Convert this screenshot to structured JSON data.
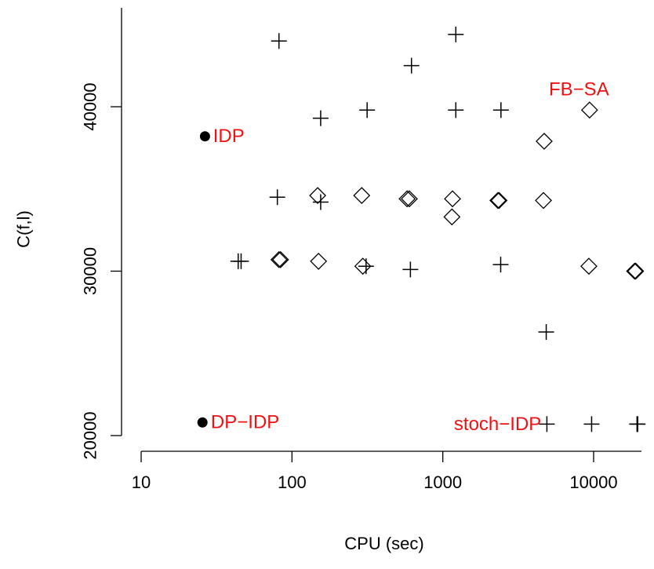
{
  "chart_data": {
    "type": "scatter",
    "title": "",
    "xlabel": "CPU (sec)",
    "ylabel": "C(f,l)",
    "xscale": "log",
    "xlim": [
      10,
      20000
    ],
    "ylim": [
      20000,
      45000
    ],
    "grid": false,
    "x_ticks": [
      10,
      100,
      1000,
      10000
    ],
    "x_tick_labels": [
      "10",
      "100",
      "1000",
      "10000"
    ],
    "y_ticks": [
      20000,
      30000,
      40000
    ],
    "y_tick_labels": [
      "20000",
      "30000",
      "40000"
    ],
    "text_color": "#ee1111",
    "series": [
      {
        "marker": "plus",
        "points": [
          {
            "x": 82,
            "y": 44000
          },
          {
            "x": 1220,
            "y": 44400
          },
          {
            "x": 620,
            "y": 42500
          },
          {
            "x": 155,
            "y": 39300
          },
          {
            "x": 315,
            "y": 39800
          },
          {
            "x": 1220,
            "y": 39800
          },
          {
            "x": 2430,
            "y": 39800
          },
          {
            "x": 80,
            "y": 34500
          },
          {
            "x": 155,
            "y": 34200
          },
          {
            "x": 44,
            "y": 30600
          },
          {
            "x": 46,
            "y": 30600
          },
          {
            "x": 310,
            "y": 30300
          },
          {
            "x": 610,
            "y": 30100
          },
          {
            "x": 2420,
            "y": 30400
          },
          {
            "x": 4850,
            "y": 26300
          },
          {
            "x": 4900,
            "y": 20700
          },
          {
            "x": 9700,
            "y": 20700
          },
          {
            "x": 19400,
            "y": 20700
          },
          {
            "x": 19600,
            "y": 20700
          }
        ]
      },
      {
        "marker": "diamond",
        "points": [
          {
            "x": 9400,
            "y": 39800
          },
          {
            "x": 4700,
            "y": 37900
          },
          {
            "x": 148,
            "y": 34600
          },
          {
            "x": 290,
            "y": 34600
          },
          {
            "x": 580,
            "y": 34400
          },
          {
            "x": 600,
            "y": 34400
          },
          {
            "x": 1160,
            "y": 34400
          },
          {
            "x": 2320,
            "y": 34300
          },
          {
            "x": 2360,
            "y": 34300
          },
          {
            "x": 4650,
            "y": 34300
          },
          {
            "x": 1150,
            "y": 33300
          },
          {
            "x": 82,
            "y": 30700
          },
          {
            "x": 84,
            "y": 30700
          },
          {
            "x": 150,
            "y": 30600
          },
          {
            "x": 295,
            "y": 30300
          },
          {
            "x": 9300,
            "y": 30300
          },
          {
            "x": 18700,
            "y": 30000
          },
          {
            "x": 19000,
            "y": 30000
          }
        ]
      },
      {
        "marker": "dot",
        "points": [
          {
            "x": 26.5,
            "y": 38200
          },
          {
            "x": 25.5,
            "y": 20800
          }
        ]
      }
    ],
    "annotations": [
      {
        "text": "IDP",
        "x": 30,
        "y": 38200,
        "anchor": "start"
      },
      {
        "text": "DP−IDP",
        "x": 29,
        "y": 20800,
        "anchor": "start"
      },
      {
        "text": "FB−SA",
        "x": 8000,
        "y": 41050,
        "anchor": "middle"
      },
      {
        "text": "stoch−IDP",
        "x": 4500,
        "y": 20700,
        "anchor": "end"
      }
    ]
  }
}
